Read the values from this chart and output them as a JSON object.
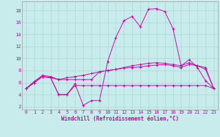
{
  "xlabel": "Windchill (Refroidissement éolien,°C)",
  "background_color": "#c8ecec",
  "grid_color": "#b0d8d8",
  "line_color": "#cc00aa",
  "x_ticks": [
    0,
    1,
    2,
    3,
    4,
    5,
    6,
    7,
    8,
    9,
    10,
    11,
    12,
    13,
    14,
    15,
    16,
    17,
    18,
    19,
    20,
    21,
    22,
    23
  ],
  "y_ticks": [
    2,
    4,
    6,
    8,
    10,
    12,
    14,
    16,
    18
  ],
  "ylim": [
    1.5,
    19.5
  ],
  "xlim": [
    -0.5,
    23.5
  ],
  "curve1_x": [
    0,
    1,
    2,
    3,
    4,
    5,
    6,
    7,
    8,
    9,
    10,
    11,
    12,
    13,
    14,
    15,
    16,
    17,
    18,
    19,
    20,
    21,
    22,
    23
  ],
  "curve1_y": [
    5.0,
    6.0,
    7.0,
    6.8,
    4.0,
    4.0,
    5.8,
    2.2,
    3.0,
    3.0,
    9.5,
    13.5,
    16.3,
    17.0,
    15.3,
    18.2,
    18.3,
    17.8,
    15.0,
    8.8,
    9.8,
    8.5,
    6.3,
    5.0
  ],
  "curve2_x": [
    0,
    1,
    2,
    3,
    4,
    5,
    6,
    7,
    8,
    9,
    10,
    11,
    12,
    13,
    14,
    15,
    16,
    17,
    18,
    19,
    20,
    21,
    22,
    23
  ],
  "curve2_y": [
    5.0,
    6.2,
    7.2,
    7.0,
    6.5,
    6.8,
    7.0,
    7.2,
    7.5,
    7.8,
    8.0,
    8.2,
    8.4,
    8.5,
    8.6,
    8.8,
    8.9,
    9.0,
    8.8,
    8.5,
    9.0,
    8.8,
    8.5,
    5.0
  ],
  "curve3_x": [
    0,
    1,
    2,
    3,
    4,
    5,
    6,
    7,
    8,
    9,
    10,
    11,
    12,
    13,
    14,
    15,
    16,
    17,
    18,
    19,
    20,
    21,
    22,
    23
  ],
  "curve3_y": [
    5.0,
    6.0,
    7.0,
    6.8,
    6.5,
    6.5,
    6.5,
    6.5,
    6.5,
    7.8,
    8.0,
    8.2,
    8.5,
    8.8,
    9.0,
    9.2,
    9.3,
    9.2,
    9.0,
    8.8,
    9.3,
    8.8,
    8.2,
    5.0
  ],
  "curve4_x": [
    0,
    1,
    2,
    3,
    4,
    5,
    6,
    7,
    8,
    9,
    10,
    11,
    12,
    13,
    14,
    15,
    16,
    17,
    18,
    19,
    20,
    21,
    22,
    23
  ],
  "curve4_y": [
    5.0,
    6.0,
    7.0,
    6.8,
    4.0,
    4.0,
    5.5,
    5.5,
    5.5,
    5.5,
    5.5,
    5.5,
    5.5,
    5.5,
    5.5,
    5.5,
    5.5,
    5.5,
    5.5,
    5.5,
    5.5,
    5.5,
    5.5,
    5.0
  ],
  "tick_fontsize": 5,
  "xlabel_fontsize": 5.5
}
